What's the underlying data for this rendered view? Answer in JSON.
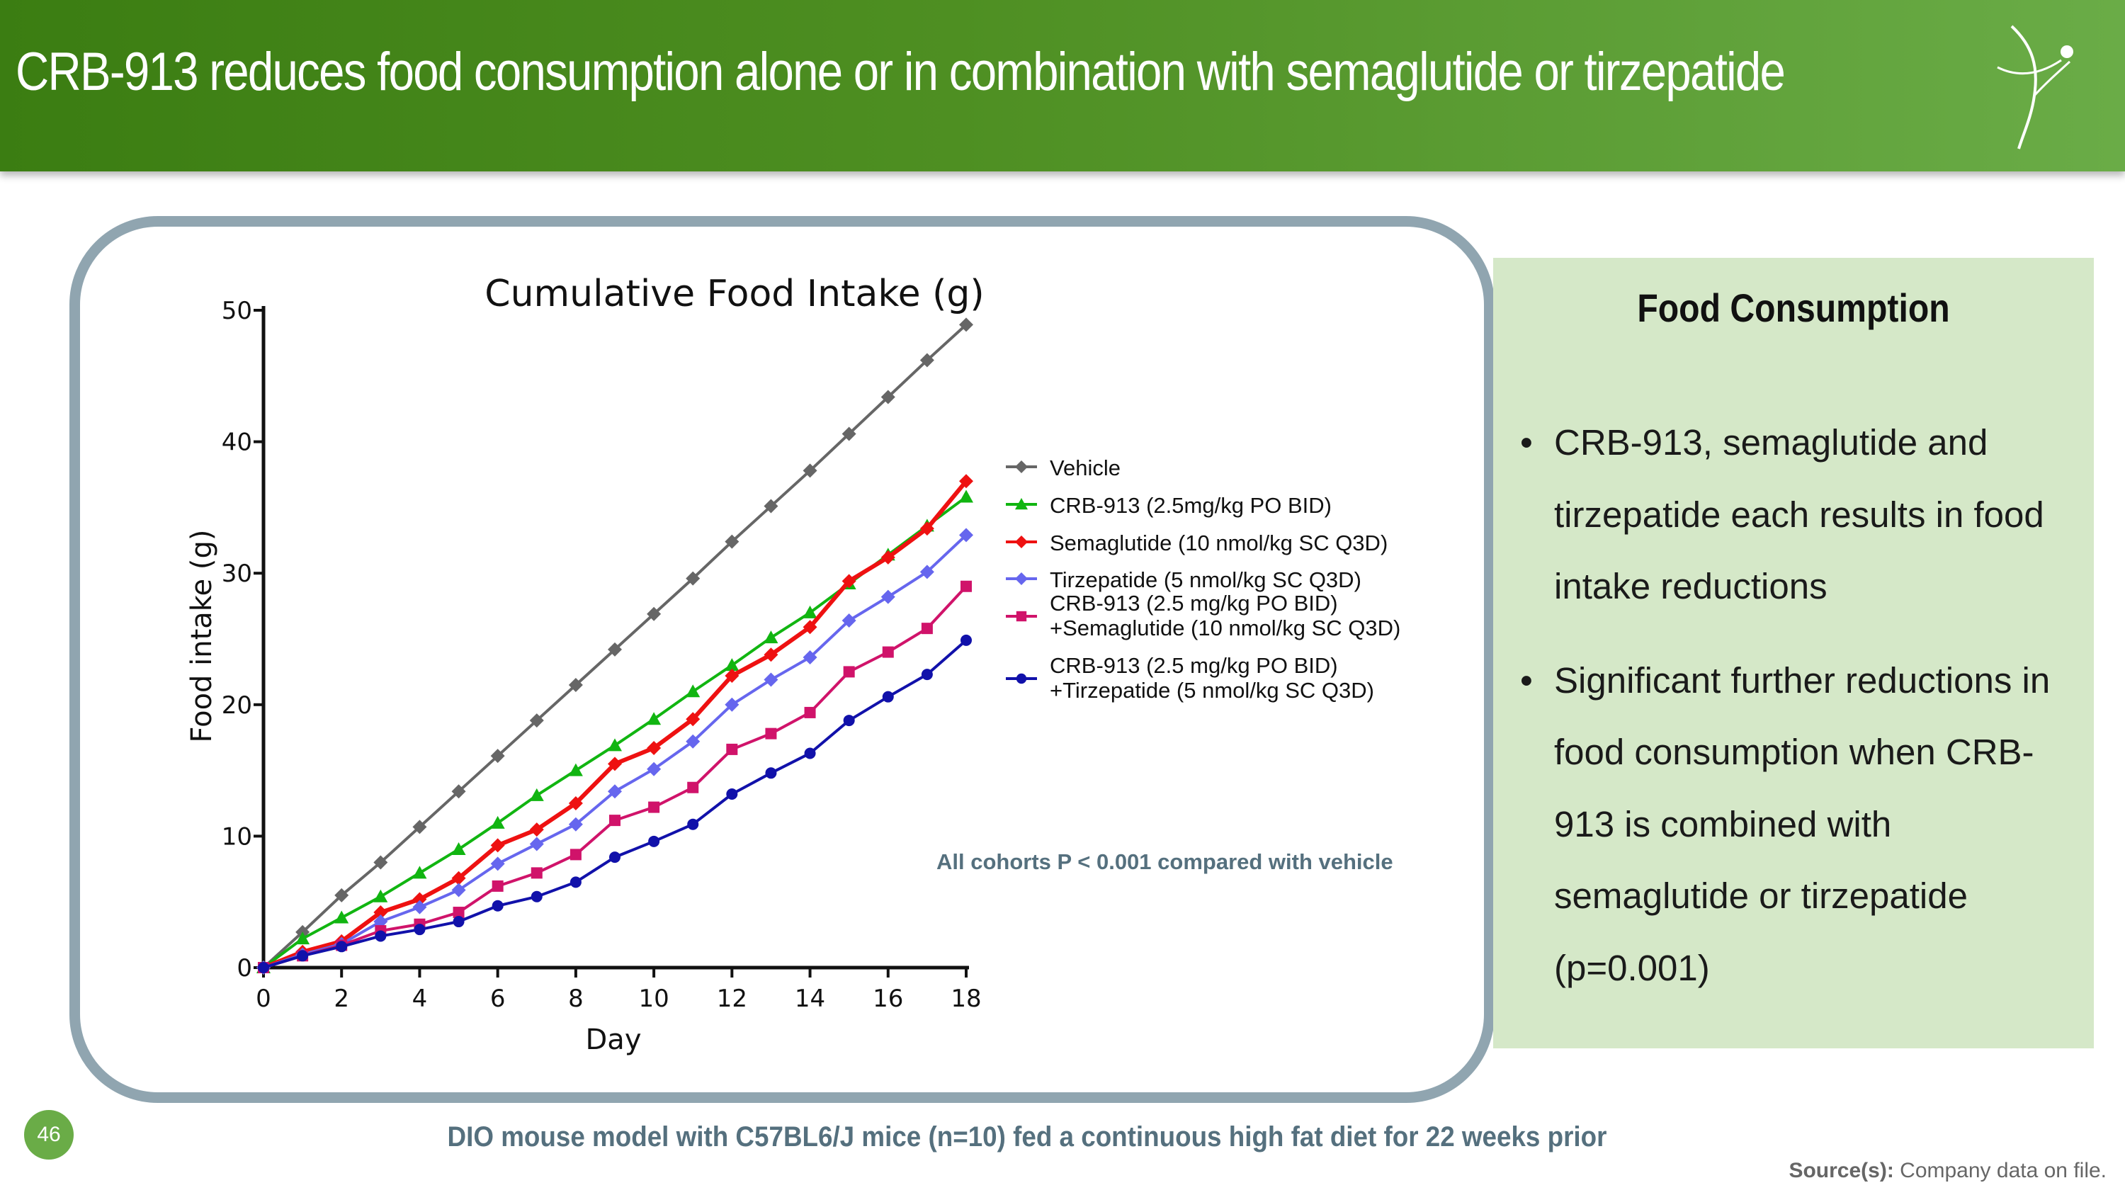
{
  "header": {
    "title": "CRB-913 reduces food consumption alone or in combination with semaglutide or tirzepatide"
  },
  "chart_data": {
    "type": "line",
    "title": "Cumulative Food Intake (g)",
    "xlabel": "Day",
    "ylabel": "Food intake (g)",
    "xlim": [
      0,
      18
    ],
    "ylim": [
      0,
      50
    ],
    "xticks": [
      0,
      2,
      4,
      6,
      8,
      10,
      12,
      14,
      16,
      18
    ],
    "yticks": [
      0,
      10,
      20,
      30,
      40,
      50
    ],
    "x": [
      0,
      1,
      2,
      3,
      4,
      5,
      6,
      7,
      8,
      9,
      10,
      11,
      12,
      13,
      14,
      15,
      16,
      17,
      18
    ],
    "legend_position": "right",
    "annotation": "All cohorts P < 0.001 compared with vehicle",
    "series": [
      {
        "name": "Vehicle",
        "color": "#666666",
        "marker": "diamond",
        "values": [
          0,
          2.7,
          5.5,
          8.0,
          10.7,
          13.4,
          16.1,
          18.8,
          21.5,
          24.2,
          26.9,
          29.6,
          32.4,
          35.1,
          37.8,
          40.6,
          43.4,
          46.2,
          48.9
        ]
      },
      {
        "name": "CRB-913 (2.5mg/kg PO BID)",
        "color": "#11b511",
        "marker": "triangle",
        "values": [
          0,
          2.2,
          3.8,
          5.4,
          7.2,
          9.0,
          11.0,
          13.1,
          15.0,
          16.9,
          18.9,
          21.0,
          23.0,
          25.1,
          27.0,
          29.2,
          31.4,
          33.6,
          35.8
        ]
      },
      {
        "name": "Semaglutide (10 nmol/kg SC Q3D)",
        "color": "#ee1111",
        "marker": "diamond",
        "values": [
          0,
          1.2,
          2.0,
          4.2,
          5.2,
          6.8,
          9.3,
          10.5,
          12.5,
          15.5,
          16.7,
          18.9,
          22.2,
          23.8,
          25.9,
          29.4,
          31.2,
          33.4,
          37.0
        ]
      },
      {
        "name": "Tirzepatide (5 nmol/kg SC Q3D)",
        "color": "#6666ee",
        "marker": "diamond",
        "values": [
          0,
          1.0,
          1.8,
          3.5,
          4.6,
          5.9,
          7.9,
          9.4,
          10.9,
          13.4,
          15.1,
          17.2,
          20.0,
          21.9,
          23.6,
          26.4,
          28.2,
          30.1,
          32.9
        ]
      },
      {
        "name": "CRB-913 (2.5 mg/kg PO BID)",
        "name2": "+Semaglutide (10 nmol/kg SC Q3D)",
        "color": "#d0136a",
        "marker": "square",
        "values": [
          0,
          0.9,
          1.7,
          2.8,
          3.3,
          4.2,
          6.2,
          7.2,
          8.6,
          11.2,
          12.2,
          13.7,
          16.6,
          17.8,
          19.4,
          22.5,
          24.0,
          25.8,
          29.0
        ]
      },
      {
        "name": "CRB-913 (2.5 mg/kg PO BID)",
        "name2": "+Tirzepatide (5 nmol/kg SC Q3D)",
        "color": "#1111aa",
        "marker": "circle",
        "values": [
          0,
          0.9,
          1.6,
          2.4,
          2.9,
          3.5,
          4.7,
          5.4,
          6.5,
          8.4,
          9.6,
          10.9,
          13.2,
          14.8,
          16.3,
          18.8,
          20.6,
          22.3,
          24.9
        ]
      }
    ]
  },
  "panel": {
    "heading": "Food Consumption",
    "bullets": [
      "CRB-913, semaglutide and tirzepatide each results in food intake reductions",
      "Significant further reductions in food consumption when CRB-913 is combined with semaglutide or tirzepatide (p=0.001)"
    ],
    "bullet_symbol": "•"
  },
  "footer": {
    "page_number": "46",
    "footnote": "DIO mouse model with C57BL6/J mice (n=10) fed a continuous high fat diet for 22 weeks prior",
    "source_label": "Source(s):",
    "source_text": "Company data on file."
  }
}
